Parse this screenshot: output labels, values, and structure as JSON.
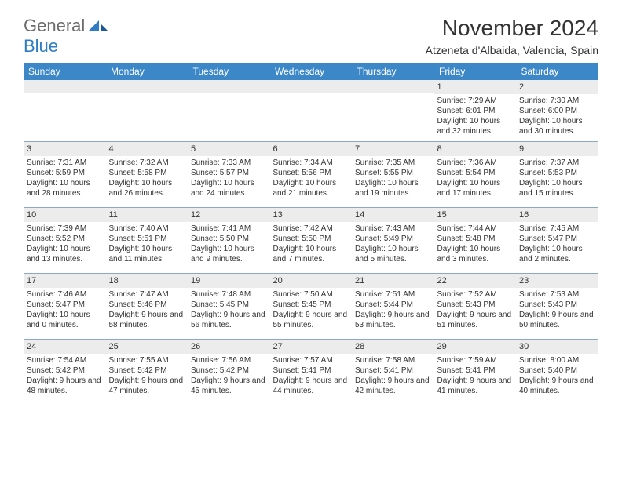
{
  "logo": {
    "general": "General",
    "blue": "Blue"
  },
  "title": "November 2024",
  "location": "Atzeneta d'Albaida, Valencia, Spain",
  "colors": {
    "header_bg": "#3c87c7",
    "header_text": "#ffffff",
    "daynum_bg": "#ececec",
    "border": "#8aa9c9",
    "logo_gray": "#6b6b6b",
    "logo_blue": "#2f7dc4"
  },
  "weekdays": [
    "Sunday",
    "Monday",
    "Tuesday",
    "Wednesday",
    "Thursday",
    "Friday",
    "Saturday"
  ],
  "weeks": [
    [
      null,
      null,
      null,
      null,
      null,
      {
        "n": "1",
        "sr": "Sunrise: 7:29 AM",
        "ss": "Sunset: 6:01 PM",
        "dl": "Daylight: 10 hours and 32 minutes."
      },
      {
        "n": "2",
        "sr": "Sunrise: 7:30 AM",
        "ss": "Sunset: 6:00 PM",
        "dl": "Daylight: 10 hours and 30 minutes."
      }
    ],
    [
      {
        "n": "3",
        "sr": "Sunrise: 7:31 AM",
        "ss": "Sunset: 5:59 PM",
        "dl": "Daylight: 10 hours and 28 minutes."
      },
      {
        "n": "4",
        "sr": "Sunrise: 7:32 AM",
        "ss": "Sunset: 5:58 PM",
        "dl": "Daylight: 10 hours and 26 minutes."
      },
      {
        "n": "5",
        "sr": "Sunrise: 7:33 AM",
        "ss": "Sunset: 5:57 PM",
        "dl": "Daylight: 10 hours and 24 minutes."
      },
      {
        "n": "6",
        "sr": "Sunrise: 7:34 AM",
        "ss": "Sunset: 5:56 PM",
        "dl": "Daylight: 10 hours and 21 minutes."
      },
      {
        "n": "7",
        "sr": "Sunrise: 7:35 AM",
        "ss": "Sunset: 5:55 PM",
        "dl": "Daylight: 10 hours and 19 minutes."
      },
      {
        "n": "8",
        "sr": "Sunrise: 7:36 AM",
        "ss": "Sunset: 5:54 PM",
        "dl": "Daylight: 10 hours and 17 minutes."
      },
      {
        "n": "9",
        "sr": "Sunrise: 7:37 AM",
        "ss": "Sunset: 5:53 PM",
        "dl": "Daylight: 10 hours and 15 minutes."
      }
    ],
    [
      {
        "n": "10",
        "sr": "Sunrise: 7:39 AM",
        "ss": "Sunset: 5:52 PM",
        "dl": "Daylight: 10 hours and 13 minutes."
      },
      {
        "n": "11",
        "sr": "Sunrise: 7:40 AM",
        "ss": "Sunset: 5:51 PM",
        "dl": "Daylight: 10 hours and 11 minutes."
      },
      {
        "n": "12",
        "sr": "Sunrise: 7:41 AM",
        "ss": "Sunset: 5:50 PM",
        "dl": "Daylight: 10 hours and 9 minutes."
      },
      {
        "n": "13",
        "sr": "Sunrise: 7:42 AM",
        "ss": "Sunset: 5:50 PM",
        "dl": "Daylight: 10 hours and 7 minutes."
      },
      {
        "n": "14",
        "sr": "Sunrise: 7:43 AM",
        "ss": "Sunset: 5:49 PM",
        "dl": "Daylight: 10 hours and 5 minutes."
      },
      {
        "n": "15",
        "sr": "Sunrise: 7:44 AM",
        "ss": "Sunset: 5:48 PM",
        "dl": "Daylight: 10 hours and 3 minutes."
      },
      {
        "n": "16",
        "sr": "Sunrise: 7:45 AM",
        "ss": "Sunset: 5:47 PM",
        "dl": "Daylight: 10 hours and 2 minutes."
      }
    ],
    [
      {
        "n": "17",
        "sr": "Sunrise: 7:46 AM",
        "ss": "Sunset: 5:47 PM",
        "dl": "Daylight: 10 hours and 0 minutes."
      },
      {
        "n": "18",
        "sr": "Sunrise: 7:47 AM",
        "ss": "Sunset: 5:46 PM",
        "dl": "Daylight: 9 hours and 58 minutes."
      },
      {
        "n": "19",
        "sr": "Sunrise: 7:48 AM",
        "ss": "Sunset: 5:45 PM",
        "dl": "Daylight: 9 hours and 56 minutes."
      },
      {
        "n": "20",
        "sr": "Sunrise: 7:50 AM",
        "ss": "Sunset: 5:45 PM",
        "dl": "Daylight: 9 hours and 55 minutes."
      },
      {
        "n": "21",
        "sr": "Sunrise: 7:51 AM",
        "ss": "Sunset: 5:44 PM",
        "dl": "Daylight: 9 hours and 53 minutes."
      },
      {
        "n": "22",
        "sr": "Sunrise: 7:52 AM",
        "ss": "Sunset: 5:43 PM",
        "dl": "Daylight: 9 hours and 51 minutes."
      },
      {
        "n": "23",
        "sr": "Sunrise: 7:53 AM",
        "ss": "Sunset: 5:43 PM",
        "dl": "Daylight: 9 hours and 50 minutes."
      }
    ],
    [
      {
        "n": "24",
        "sr": "Sunrise: 7:54 AM",
        "ss": "Sunset: 5:42 PM",
        "dl": "Daylight: 9 hours and 48 minutes."
      },
      {
        "n": "25",
        "sr": "Sunrise: 7:55 AM",
        "ss": "Sunset: 5:42 PM",
        "dl": "Daylight: 9 hours and 47 minutes."
      },
      {
        "n": "26",
        "sr": "Sunrise: 7:56 AM",
        "ss": "Sunset: 5:42 PM",
        "dl": "Daylight: 9 hours and 45 minutes."
      },
      {
        "n": "27",
        "sr": "Sunrise: 7:57 AM",
        "ss": "Sunset: 5:41 PM",
        "dl": "Daylight: 9 hours and 44 minutes."
      },
      {
        "n": "28",
        "sr": "Sunrise: 7:58 AM",
        "ss": "Sunset: 5:41 PM",
        "dl": "Daylight: 9 hours and 42 minutes."
      },
      {
        "n": "29",
        "sr": "Sunrise: 7:59 AM",
        "ss": "Sunset: 5:41 PM",
        "dl": "Daylight: 9 hours and 41 minutes."
      },
      {
        "n": "30",
        "sr": "Sunrise: 8:00 AM",
        "ss": "Sunset: 5:40 PM",
        "dl": "Daylight: 9 hours and 40 minutes."
      }
    ]
  ]
}
